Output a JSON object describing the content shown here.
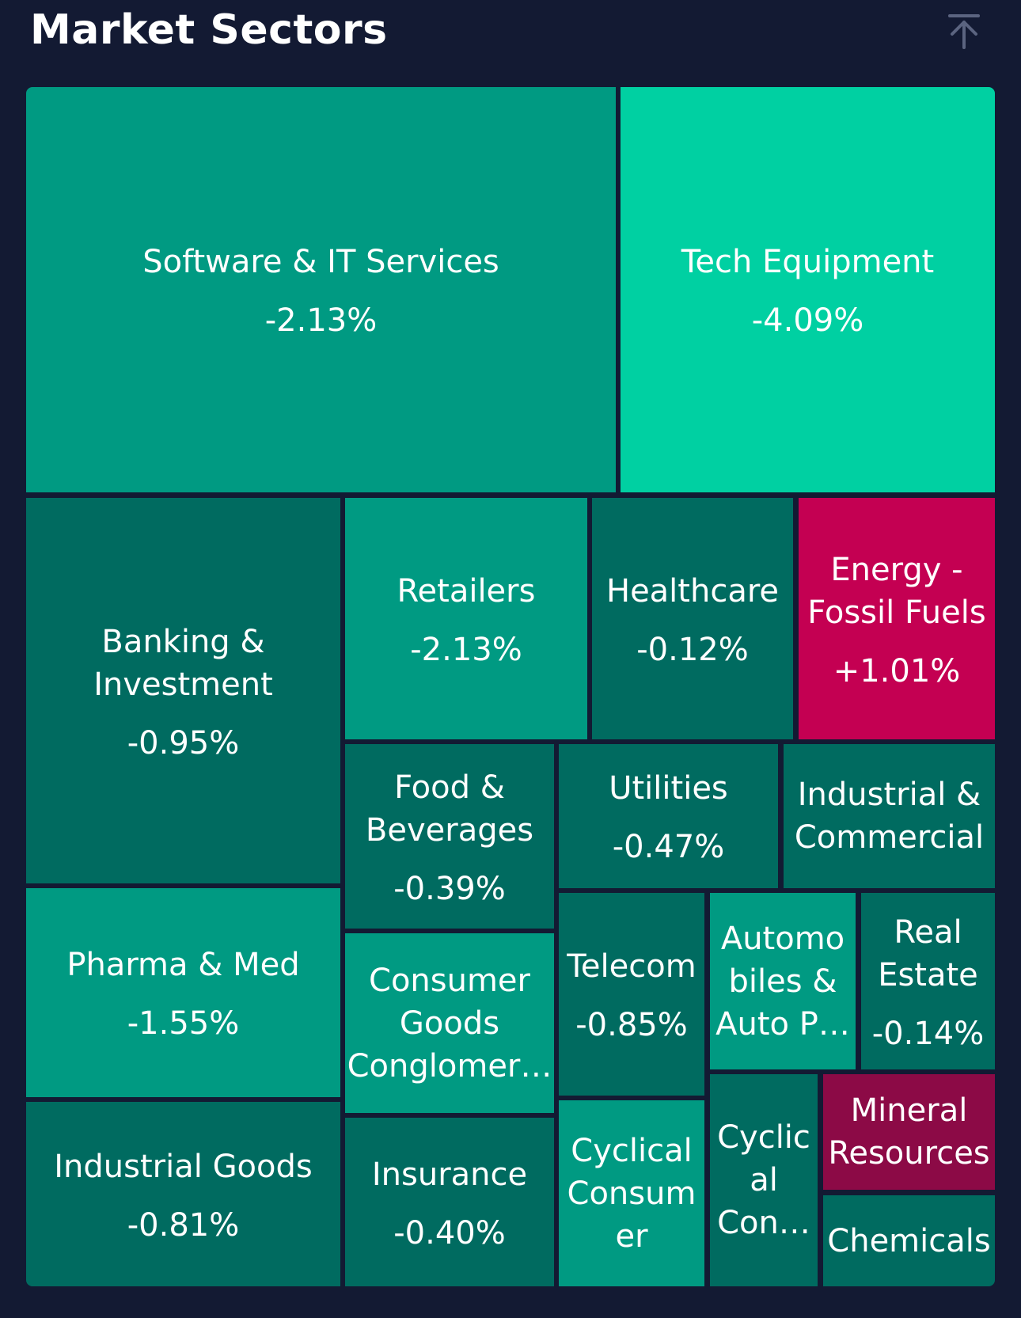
{
  "header": {
    "title": "Market Sectors",
    "collapse_icon": "collapse-up-icon"
  },
  "colors": {
    "background": "#131a33",
    "loss_strong": "#00d0a2",
    "loss_medium": "#009a82",
    "loss_mild": "#00a88e",
    "loss_weak": "#006b60",
    "gain": "#c40052",
    "gain_weak": "#8c0a46"
  },
  "chart_data": {
    "type": "treemap",
    "title": "Market Sectors",
    "sectors": [
      {
        "name": "Software & IT Services",
        "change": "-2.13%",
        "value": -2.13
      },
      {
        "name": "Tech Equipment",
        "change": "-4.09%",
        "value": -4.09
      },
      {
        "name": "Banking & Investment",
        "change": "-0.95%",
        "value": -0.95
      },
      {
        "name": "Retailers",
        "change": "-2.13%",
        "value": -2.13
      },
      {
        "name": "Healthcare",
        "change": "-0.12%",
        "value": -0.12
      },
      {
        "name": "Energy - Fossil Fuels",
        "change": "+1.01%",
        "value": 1.01
      },
      {
        "name": "Food & Beverages",
        "change": "-0.39%",
        "value": -0.39
      },
      {
        "name": "Utilities",
        "change": "-0.47%",
        "value": -0.47
      },
      {
        "name": "Industrial & Commercial",
        "change": "",
        "value": null
      },
      {
        "name": "Pharma & Med",
        "change": "-1.55%",
        "value": -1.55
      },
      {
        "name": "Consumer Goods Conglomer…",
        "change": "",
        "value": null
      },
      {
        "name": "Telecom",
        "change": "-0.85%",
        "value": -0.85
      },
      {
        "name": "Automobiles & Auto P…",
        "change": "",
        "value": null
      },
      {
        "name": "Real Estate",
        "change": "-0.14%",
        "value": -0.14
      },
      {
        "name": "Industrial Goods",
        "change": "-0.81%",
        "value": -0.81
      },
      {
        "name": "Insurance",
        "change": "-0.40%",
        "value": -0.4
      },
      {
        "name": "Cyclical Consumer",
        "change": "",
        "value": null
      },
      {
        "name": "Cyclical Con…",
        "change": "",
        "value": null
      },
      {
        "name": "Mineral Resources",
        "change": "",
        "value": null
      },
      {
        "name": "Chemicals",
        "change": "",
        "value": null
      }
    ]
  }
}
